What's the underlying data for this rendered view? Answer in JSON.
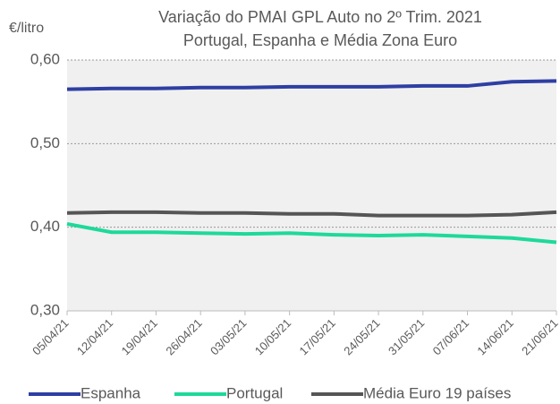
{
  "chart_data": {
    "type": "line",
    "title": "Variação do PMAI GPL Auto no 2º Trim. 2021",
    "subtitle": "Portugal, Espanha e Média Zona Euro",
    "y_label": "€/litro",
    "categories": [
      "05/04/21",
      "12/04/21",
      "19/04/21",
      "26/04/21",
      "03/05/21",
      "10/05/21",
      "17/05/21",
      "24/05/21",
      "31/05/21",
      "07/06/21",
      "14/06/21",
      "21/06/21"
    ],
    "series": [
      {
        "name": "Espanha",
        "color": "#2e3fa3",
        "values": [
          0.565,
          0.566,
          0.566,
          0.567,
          0.567,
          0.568,
          0.568,
          0.568,
          0.569,
          0.569,
          0.574,
          0.575
        ]
      },
      {
        "name": "Portugal",
        "color": "#1ed99a",
        "values": [
          0.404,
          0.394,
          0.394,
          0.393,
          0.392,
          0.393,
          0.391,
          0.39,
          0.391,
          0.389,
          0.387,
          0.382
        ]
      },
      {
        "name": "Média Euro 19 países",
        "color": "#555555",
        "values": [
          0.417,
          0.418,
          0.418,
          0.417,
          0.417,
          0.416,
          0.416,
          0.414,
          0.414,
          0.414,
          0.415,
          0.418
        ]
      }
    ],
    "ylim": [
      0.3,
      0.6
    ],
    "yticks": [
      {
        "value": 0.3,
        "label": "0,30"
      },
      {
        "value": 0.4,
        "label": "0,40"
      },
      {
        "value": 0.5,
        "label": "0,50"
      },
      {
        "value": 0.6,
        "label": "0,60"
      }
    ],
    "grid": true,
    "legend": "bottom"
  }
}
